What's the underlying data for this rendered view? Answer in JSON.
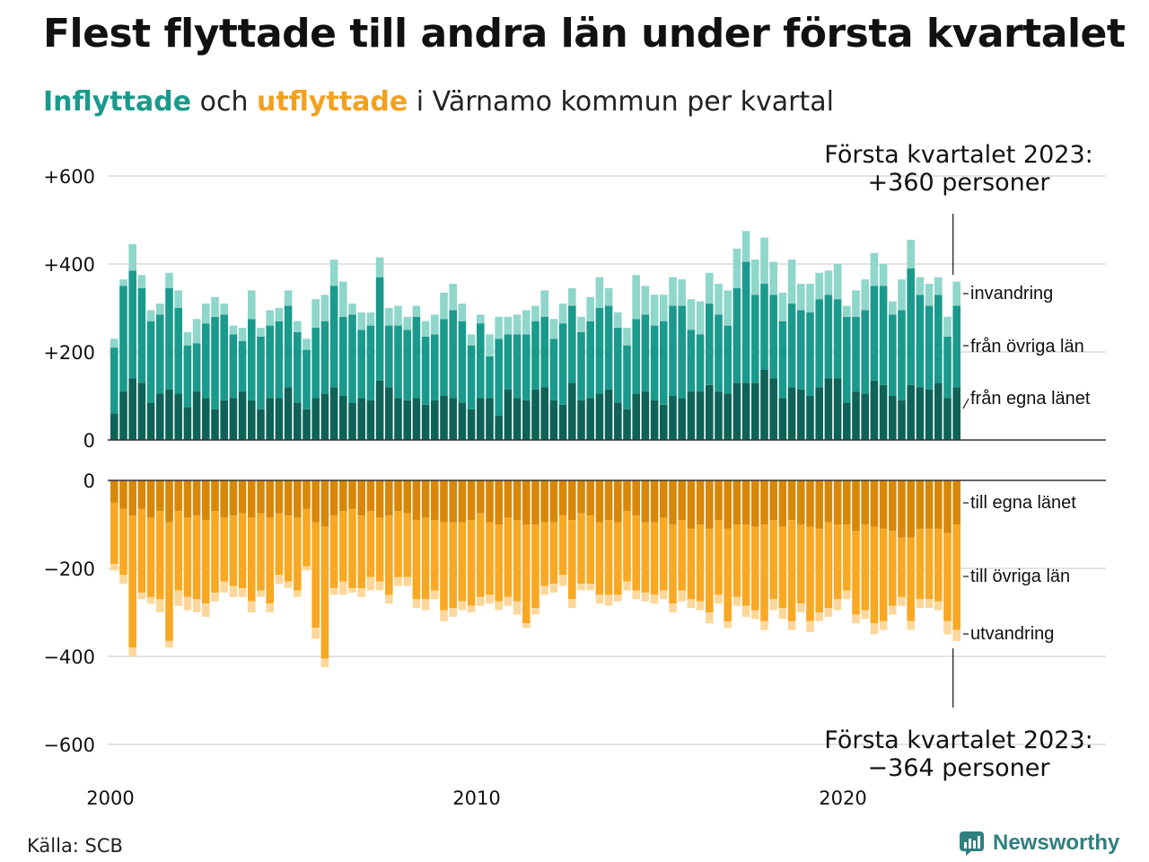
{
  "title": "Flest flyttade till andra län under första kvartalet",
  "subtitle": {
    "in_word": "Inflyttade",
    "connector": " och ",
    "out_word": "utflyttade",
    "rest": " i Värnamo kommun per kvartal"
  },
  "source": "Källa: SCB",
  "brand": "Newsworthy",
  "colors": {
    "in_same": "#0f6257",
    "in_other": "#1a9a8c",
    "in_immigration": "#8fd6cb",
    "out_same": "#d88708",
    "out_other": "#f8a823",
    "out_emigration": "#fcd79b",
    "grid": "#e3e3e3",
    "baseline": "#333333",
    "brand": "#2f7f7f"
  },
  "chart_data": {
    "type": "bar",
    "stacked": true,
    "x_ticks": [
      "2000",
      "2010",
      "2020"
    ],
    "y_ticks": [
      "+600",
      "+400",
      "+200",
      "0",
      "0",
      "−200",
      "−400",
      "−600"
    ],
    "in_ylim": [
      0,
      600
    ],
    "out_ylim": [
      -600,
      0
    ],
    "grid": true,
    "legend_placement": "right",
    "series_labels": {
      "in_immigration": "invandring",
      "in_other": "från övriga län",
      "in_same": "från egna länet",
      "out_same": "till egna länet",
      "out_other": "till övriga län",
      "out_emigration": "utvandring"
    },
    "annotation_top": [
      "Första kvartalet 2023:",
      "+360 personer"
    ],
    "annotation_bottom": [
      "Första kvartalet 2023:",
      "−364 personer"
    ],
    "start_year": 2000,
    "in_same": [
      60,
      110,
      140,
      130,
      85,
      105,
      115,
      105,
      75,
      110,
      95,
      70,
      90,
      95,
      110,
      90,
      70,
      95,
      95,
      120,
      85,
      70,
      95,
      105,
      120,
      100,
      85,
      95,
      90,
      135,
      120,
      95,
      90,
      95,
      80,
      90,
      100,
      95,
      85,
      70,
      95,
      95,
      55,
      115,
      95,
      90,
      115,
      120,
      90,
      80,
      130,
      90,
      95,
      105,
      115,
      85,
      70,
      105,
      110,
      90,
      80,
      100,
      95,
      110,
      110,
      125,
      110,
      105,
      130,
      130,
      130,
      160,
      140,
      95,
      120,
      115,
      100,
      120,
      140,
      140,
      85,
      110,
      105,
      135,
      125,
      100,
      90,
      125,
      120,
      115,
      130,
      95,
      120
    ],
    "in_other": [
      150,
      240,
      245,
      215,
      185,
      180,
      230,
      195,
      140,
      110,
      170,
      210,
      195,
      145,
      115,
      185,
      165,
      165,
      175,
      185,
      160,
      135,
      160,
      165,
      230,
      180,
      200,
      155,
      170,
      235,
      140,
      165,
      160,
      185,
      155,
      150,
      175,
      200,
      185,
      145,
      170,
      95,
      175,
      125,
      145,
      150,
      155,
      160,
      140,
      185,
      175,
      155,
      175,
      195,
      190,
      170,
      145,
      170,
      175,
      170,
      190,
      205,
      210,
      140,
      130,
      185,
      175,
      155,
      215,
      275,
      200,
      195,
      190,
      175,
      190,
      180,
      190,
      200,
      190,
      180,
      195,
      170,
      190,
      215,
      225,
      185,
      205,
      265,
      210,
      190,
      200,
      140,
      185
    ],
    "in_immigration": [
      20,
      15,
      60,
      30,
      25,
      25,
      35,
      40,
      30,
      55,
      45,
      45,
      25,
      20,
      30,
      65,
      20,
      35,
      30,
      35,
      25,
      25,
      65,
      60,
      60,
      80,
      25,
      40,
      30,
      45,
      40,
      45,
      30,
      25,
      35,
      45,
      60,
      60,
      40,
      25,
      20,
      50,
      50,
      40,
      45,
      55,
      35,
      60,
      45,
      45,
      40,
      35,
      55,
      70,
      40,
      35,
      40,
      100,
      65,
      70,
      60,
      65,
      60,
      70,
      75,
      70,
      70,
      80,
      90,
      70,
      80,
      105,
      75,
      65,
      100,
      60,
      65,
      60,
      55,
      80,
      25,
      60,
      70,
      75,
      50,
      30,
      70,
      65,
      40,
      50,
      40,
      45,
      55
    ],
    "out_same": [
      50,
      65,
      80,
      65,
      85,
      70,
      95,
      70,
      85,
      80,
      90,
      70,
      85,
      80,
      75,
      85,
      75,
      85,
      75,
      80,
      85,
      65,
      95,
      105,
      80,
      70,
      65,
      80,
      70,
      85,
      80,
      70,
      75,
      90,
      85,
      90,
      95,
      95,
      95,
      90,
      75,
      95,
      100,
      85,
      90,
      100,
      100,
      95,
      95,
      80,
      90,
      75,
      80,
      95,
      90,
      95,
      70,
      80,
      95,
      95,
      85,
      100,
      90,
      110,
      100,
      110,
      90,
      110,
      100,
      100,
      105,
      100,
      90,
      105,
      90,
      100,
      105,
      110,
      95,
      100,
      100,
      115,
      100,
      105,
      110,
      115,
      130,
      130,
      110,
      110,
      110,
      120,
      100
    ],
    "out_other": [
      140,
      150,
      300,
      190,
      180,
      200,
      270,
      180,
      180,
      190,
      190,
      185,
      145,
      160,
      170,
      190,
      175,
      195,
      140,
      150,
      165,
      130,
      240,
      300,
      165,
      160,
      180,
      165,
      150,
      145,
      180,
      150,
      145,
      180,
      185,
      160,
      200,
      195,
      180,
      195,
      190,
      165,
      175,
      180,
      185,
      225,
      190,
      145,
      140,
      135,
      180,
      160,
      155,
      165,
      170,
      165,
      160,
      170,
      160,
      165,
      165,
      180,
      160,
      160,
      175,
      190,
      170,
      210,
      165,
      185,
      190,
      220,
      180,
      185,
      230,
      180,
      215,
      190,
      195,
      170,
      150,
      190,
      195,
      220,
      210,
      170,
      135,
      190,
      160,
      160,
      165,
      200,
      240
    ],
    "out_emigration": [
      15,
      20,
      20,
      15,
      15,
      30,
      15,
      35,
      30,
      30,
      30,
      20,
      25,
      25,
      20,
      25,
      15,
      20,
      20,
      15,
      15,
      10,
      25,
      20,
      15,
      30,
      10,
      20,
      30,
      20,
      20,
      20,
      20,
      20,
      25,
      20,
      25,
      20,
      20,
      15,
      20,
      20,
      20,
      20,
      30,
      10,
      15,
      20,
      20,
      25,
      20,
      15,
      15,
      20,
      25,
      15,
      20,
      20,
      20,
      20,
      20,
      20,
      25,
      20,
      20,
      25,
      20,
      15,
      20,
      25,
      20,
      20,
      25,
      25,
      20,
      20,
      25,
      20,
      20,
      25,
      20,
      20,
      20,
      25,
      20,
      20,
      20,
      20,
      20,
      20,
      20,
      30,
      25
    ]
  }
}
